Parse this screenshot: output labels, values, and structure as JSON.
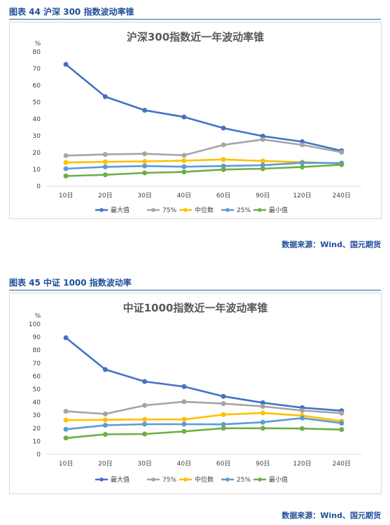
{
  "figures": [
    {
      "label": "图表 44  沪深 300 指数波动率锥",
      "source": "数据来源：Wind、国元期货"
    },
    {
      "label": "图表 45  中证 1000 指数波动率",
      "source": "数据来源：Wind、国元期货"
    }
  ],
  "chart_data": [
    {
      "type": "line",
      "title": "沪深300指数近一年波动率锥",
      "ylabel": "%",
      "ylim": [
        0,
        80
      ],
      "yticks": [
        0,
        10,
        20,
        30,
        40,
        50,
        60,
        70,
        80
      ],
      "categories": [
        "10日",
        "20日",
        "30日",
        "40日",
        "60日",
        "90日",
        "120日",
        "240日"
      ],
      "grid": false,
      "legend_position": "bottom",
      "series": [
        {
          "name": "最大值",
          "color": "#4472c4",
          "values": [
            72.5,
            53.3,
            45.2,
            41.2,
            34.6,
            29.8,
            26.5,
            21.1
          ]
        },
        {
          "name": "75%",
          "color": "#a5a5a5",
          "values": [
            18.2,
            18.9,
            19.3,
            18.4,
            24.6,
            27.8,
            24.6,
            20.2
          ]
        },
        {
          "name": "中位数",
          "color": "#ffc000",
          "values": [
            14.1,
            14.5,
            14.8,
            15.2,
            15.9,
            15.0,
            14.3,
            13.6
          ]
        },
        {
          "name": "25%",
          "color": "#5b9bd5",
          "values": [
            10.4,
            11.5,
            12.0,
            11.6,
            12.0,
            12.5,
            13.9,
            13.8
          ]
        },
        {
          "name": "最小值",
          "color": "#70ad47",
          "values": [
            6.1,
            6.8,
            7.9,
            8.5,
            9.9,
            10.4,
            11.4,
            12.8
          ]
        }
      ]
    },
    {
      "type": "line",
      "title": "中证1000指数近一年波动率锥",
      "ylabel": "%",
      "ylim": [
        0,
        100
      ],
      "yticks": [
        0,
        10,
        20,
        30,
        40,
        50,
        60,
        70,
        80,
        90,
        100
      ],
      "categories": [
        "10日",
        "20日",
        "30日",
        "40日",
        "60日",
        "90日",
        "120日",
        "240日"
      ],
      "grid": false,
      "legend_position": "bottom",
      "series": [
        {
          "name": "最大值",
          "color": "#4472c4",
          "values": [
            89.5,
            65.1,
            55.9,
            52.0,
            44.5,
            39.6,
            35.8,
            33.5
          ]
        },
        {
          "name": "75%",
          "color": "#a5a5a5",
          "values": [
            33.0,
            31.0,
            37.6,
            40.4,
            38.9,
            36.8,
            33.6,
            31.6
          ]
        },
        {
          "name": "中位数",
          "color": "#ffc000",
          "values": [
            26.2,
            26.5,
            26.8,
            26.8,
            30.5,
            31.8,
            29.7,
            25.5
          ]
        },
        {
          "name": "25%",
          "color": "#5b9bd5",
          "values": [
            19.2,
            22.3,
            23.1,
            23.1,
            23.0,
            24.6,
            27.8,
            23.9
          ]
        },
        {
          "name": "最小值",
          "color": "#70ad47",
          "values": [
            12.5,
            15.3,
            15.6,
            17.6,
            20.0,
            20.0,
            19.8,
            19.0
          ]
        }
      ]
    }
  ]
}
